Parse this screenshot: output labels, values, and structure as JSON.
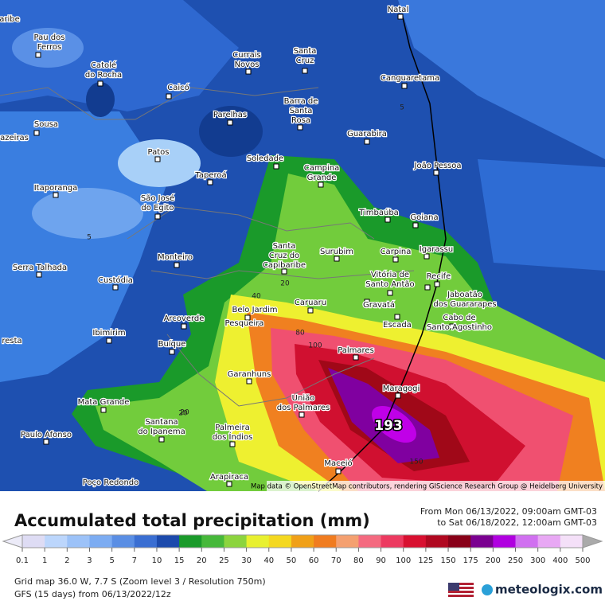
{
  "title": "Accumulated total precipitation (mm)",
  "period": [
    "From Mon 06/13/2022, 09:00am GMT-03",
    "to Sat 06/18/2022, 12:00am GMT-03"
  ],
  "legend": {
    "ticks": [
      0.1,
      1,
      2,
      3,
      5,
      7,
      10,
      15,
      20,
      25,
      30,
      40,
      50,
      60,
      70,
      80,
      90,
      100,
      125,
      150,
      175,
      200,
      250,
      300,
      400,
      500
    ],
    "colors": [
      "#dedcf4",
      "#bcd6fc",
      "#9cc2f8",
      "#7cacf2",
      "#5a8ee4",
      "#3a6ed2",
      "#1c4aac",
      "#1a9a2a",
      "#46b83a",
      "#8cd43e",
      "#e8f030",
      "#f4d820",
      "#f0a018",
      "#f07c20",
      "#f4a070",
      "#f46a80",
      "#ec3a60",
      "#d81030",
      "#b00820",
      "#880018",
      "#7a0090",
      "#b000e0",
      "#d070f0",
      "#e8a8f4",
      "#f4e0f8"
    ]
  },
  "places": [
    {
      "lines": [
        "aribe"
      ]
    },
    {
      "lines": [
        "Natal"
      ]
    },
    {
      "lines": [
        "Pau dos",
        "Ferros"
      ]
    },
    {
      "lines": [
        "Santa",
        "Cruz"
      ]
    },
    {
      "lines": [
        "Currais",
        "Novos"
      ]
    },
    {
      "lines": [
        "Catolé",
        "do Rocha"
      ]
    },
    {
      "lines": [
        "Canguaretama"
      ]
    },
    {
      "lines": [
        "Caicó"
      ]
    },
    {
      "lines": [
        "Barra de",
        "Santa",
        "Rosa"
      ]
    },
    {
      "lines": [
        "Parelhas"
      ]
    },
    {
      "lines": [
        "Sousa"
      ]
    },
    {
      "lines": [
        "Guarabira"
      ]
    },
    {
      "lines": [
        "azeiras"
      ]
    },
    {
      "lines": [
        "Patos"
      ]
    },
    {
      "lines": [
        "Soledade"
      ]
    },
    {
      "lines": [
        "João Pessoa"
      ]
    },
    {
      "lines": [
        "Campina",
        "Grande"
      ]
    },
    {
      "lines": [
        "Taperoá"
      ]
    },
    {
      "lines": [
        "Itaporanga"
      ]
    },
    {
      "lines": [
        "São José",
        "do Egito"
      ]
    },
    {
      "lines": [
        "Timbaúba"
      ]
    },
    {
      "lines": [
        "Goiana"
      ]
    },
    {
      "lines": [
        "Monteiro"
      ]
    },
    {
      "lines": [
        "Santa",
        "Cruz do",
        "Capibaribe"
      ]
    },
    {
      "lines": [
        "Surubim"
      ]
    },
    {
      "lines": [
        "Carpina"
      ]
    },
    {
      "lines": [
        "Igarassu"
      ]
    },
    {
      "lines": [
        "Serra Talhada"
      ]
    },
    {
      "lines": [
        "Custódia"
      ]
    },
    {
      "lines": [
        "Vitória de",
        "Santo Antão"
      ]
    },
    {
      "lines": [
        "Recife"
      ]
    },
    {
      "lines": [
        "Jaboatão",
        "dos Guararapes"
      ]
    },
    {
      "lines": [
        "Caruaru"
      ]
    },
    {
      "lines": [
        "Gravatá"
      ]
    },
    {
      "lines": [
        "Belo Jardim"
      ]
    },
    {
      "lines": [
        "Pesqueira"
      ]
    },
    {
      "lines": [
        "Arcoverde"
      ]
    },
    {
      "lines": [
        "Cabo de",
        "Santo Agostinho"
      ]
    },
    {
      "lines": [
        "Escada"
      ]
    },
    {
      "lines": [
        "Ibimirim"
      ]
    },
    {
      "lines": [
        "resta"
      ]
    },
    {
      "lines": [
        "Buíque"
      ]
    },
    {
      "lines": [
        "Palmares"
      ]
    },
    {
      "lines": [
        "Garanhuns"
      ]
    },
    {
      "lines": [
        "Maragogi"
      ]
    },
    {
      "lines": [
        "União",
        "dos Palmares"
      ]
    },
    {
      "lines": [
        "Mata Grande"
      ]
    },
    {
      "lines": [
        "Santana",
        "do Ipanema"
      ]
    },
    {
      "lines": [
        "Palmeira",
        "dos Índios"
      ]
    },
    {
      "lines": [
        "Paulo Afonso"
      ]
    },
    {
      "lines": [
        "Maceió"
      ]
    },
    {
      "lines": [
        "Arapiraca"
      ]
    },
    {
      "lines": [
        "Poço Redondo"
      ]
    }
  ],
  "contours": [
    "5",
    "5",
    "20",
    "40",
    "80",
    "100",
    "150",
    "20",
    "20"
  ],
  "peak": "193",
  "attribution": "Map data © OpenStreetMap contributors, rendering GIScience Research Group @ Heidelberg University",
  "info": [
    "Grid map 36.0 W, 7.7 S (Zoom level 3 / Resolution 750m)",
    "GFS (15 days) from 06/13/2022/12z"
  ],
  "brand": "meteologix.com"
}
